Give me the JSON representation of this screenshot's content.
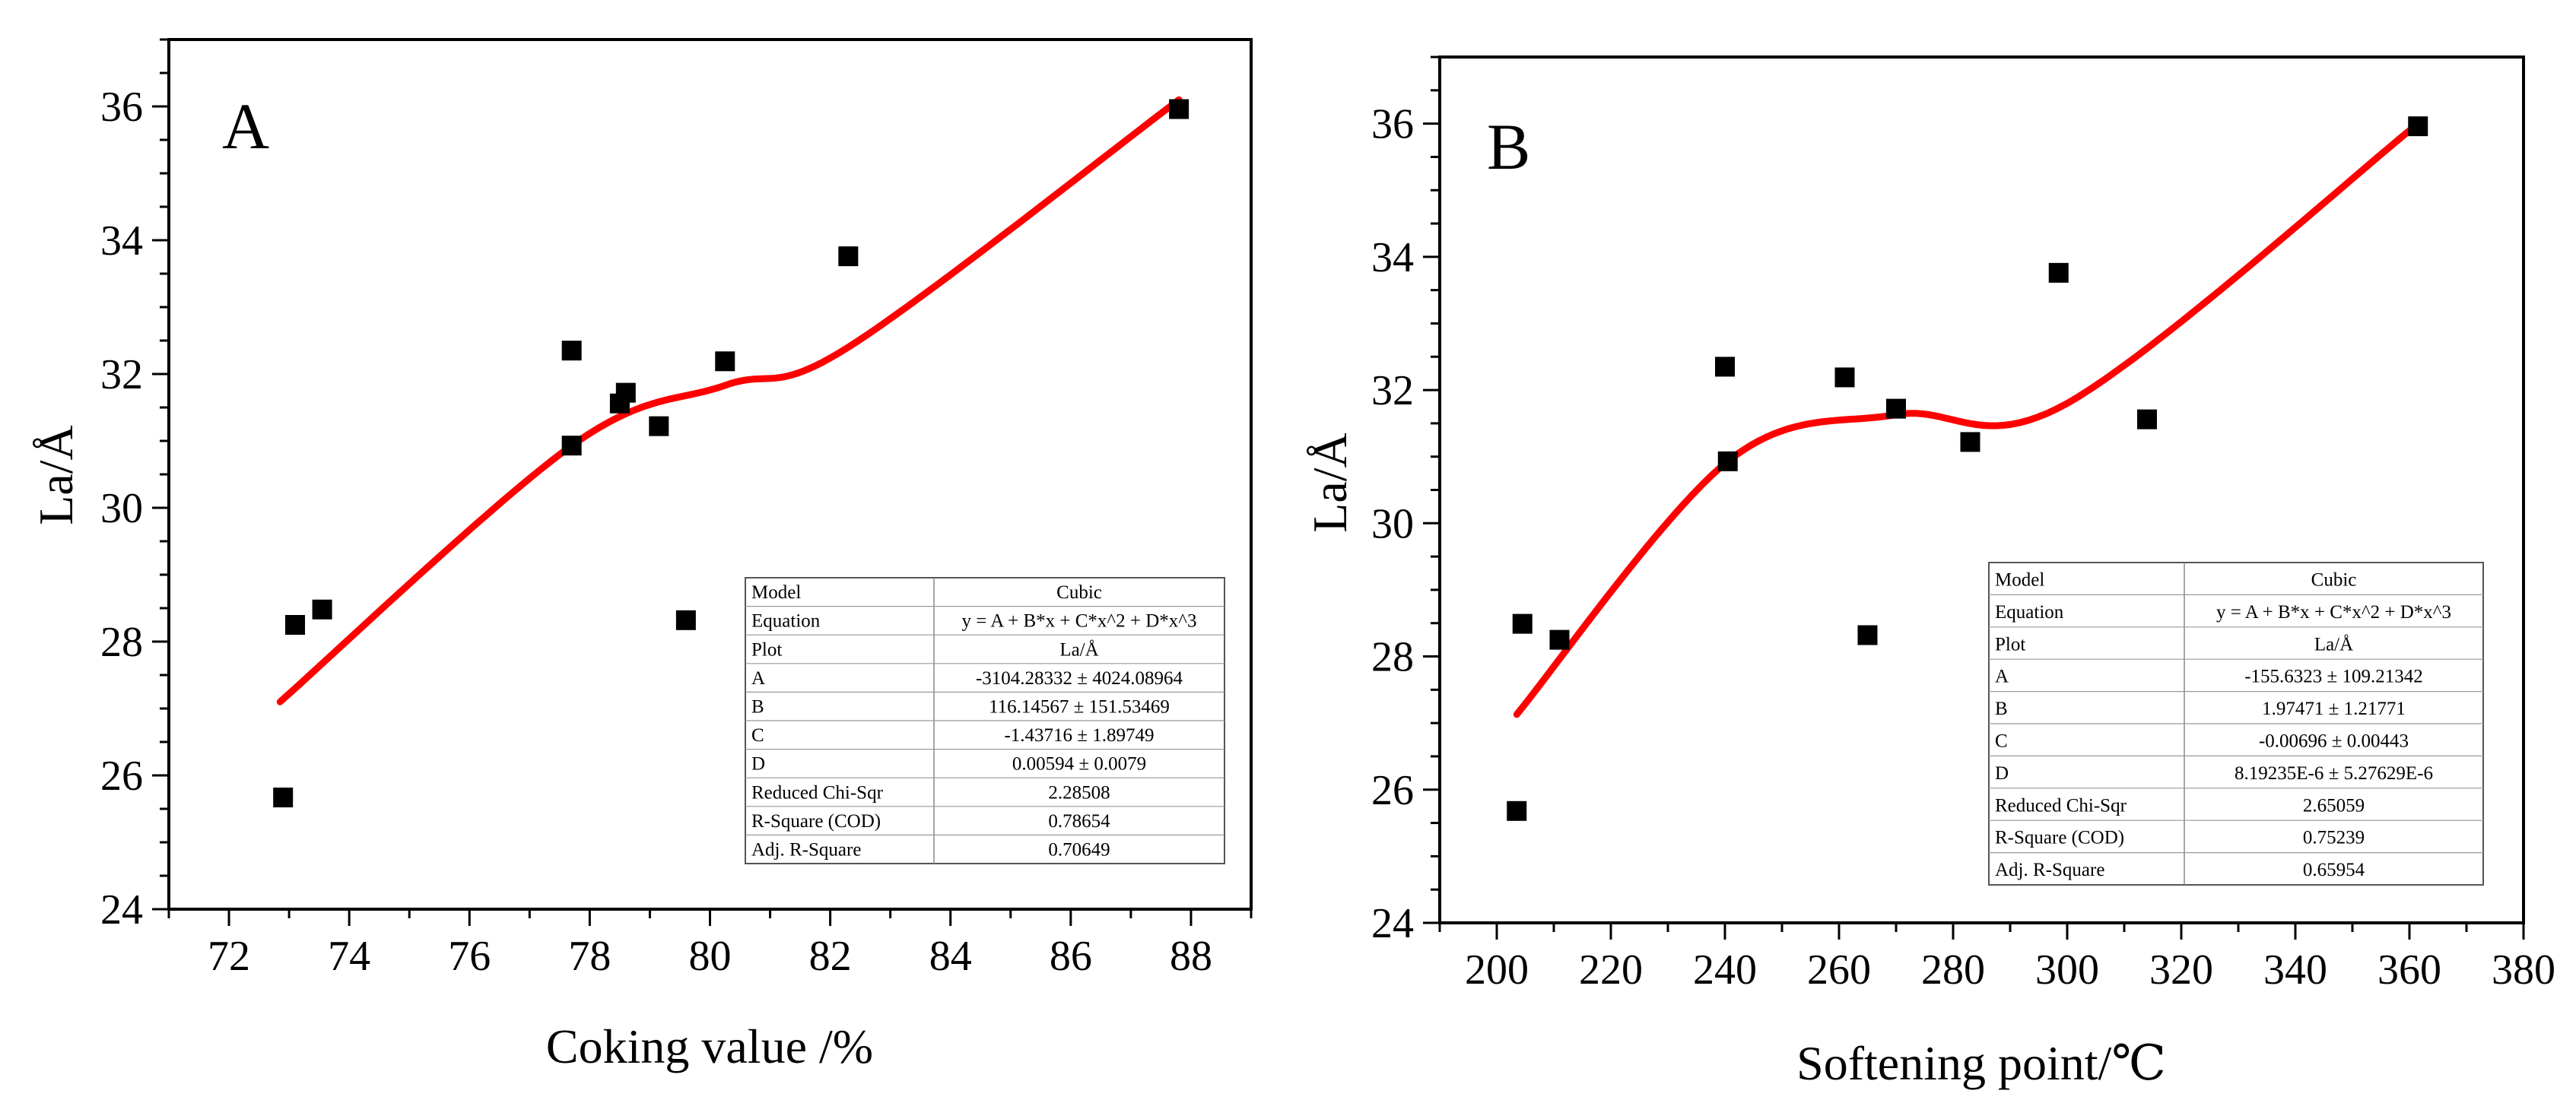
{
  "chart_data": [
    {
      "type": "scatter",
      "panel_label": "A",
      "xlabel": "Coking value /%",
      "ylabel": "La/Å",
      "xlim": [
        71,
        89
      ],
      "ylim": [
        24,
        37
      ],
      "x_ticks": [
        72,
        74,
        76,
        78,
        80,
        82,
        84,
        86,
        88
      ],
      "y_ticks": [
        24,
        26,
        28,
        30,
        32,
        34,
        36
      ],
      "series": [
        {
          "name": "La/Å",
          "points": [
            {
              "x": 72.9,
              "y": 25.67
            },
            {
              "x": 73.1,
              "y": 28.25
            },
            {
              "x": 73.55,
              "y": 28.48
            },
            {
              "x": 77.7,
              "y": 32.35
            },
            {
              "x": 77.7,
              "y": 30.93
            },
            {
              "x": 78.5,
              "y": 31.56
            },
            {
              "x": 78.6,
              "y": 31.72
            },
            {
              "x": 79.15,
              "y": 31.22
            },
            {
              "x": 79.6,
              "y": 28.32
            },
            {
              "x": 80.25,
              "y": 32.19
            },
            {
              "x": 82.3,
              "y": 33.76
            },
            {
              "x": 87.8,
              "y": 35.96
            }
          ]
        }
      ],
      "fit": {
        "color": "#ff0000",
        "x_range": [
          72.85,
          87.8
        ],
        "anchor_points": [
          [
            72.85,
            27.1
          ],
          [
            77.7,
            30.93
          ],
          [
            80.25,
            31.83
          ],
          [
            82.3,
            32.4
          ],
          [
            87.8,
            36.1
          ]
        ]
      },
      "fit_table": {
        "rows": [
          [
            "Model",
            "Cubic"
          ],
          [
            "Equation",
            "y = A + B*x + C*x^2 + D*x^3"
          ],
          [
            "Plot",
            "La/Å"
          ],
          [
            "A",
            "-3104.28332 ± 4024.08964"
          ],
          [
            "B",
            "116.14567 ± 151.53469"
          ],
          [
            "C",
            "-1.43716 ± 1.89749"
          ],
          [
            "D",
            "0.00594 ± 0.0079"
          ],
          [
            "Reduced Chi-Sqr",
            "2.28508"
          ],
          [
            "R-Square (COD)",
            "0.78654"
          ],
          [
            "Adj. R-Square",
            "0.70649"
          ]
        ]
      }
    },
    {
      "type": "scatter",
      "panel_label": "B",
      "xlabel": "Softening point/℃",
      "ylabel": "La/Å",
      "xlim": [
        190,
        380
      ],
      "ylim": [
        24,
        37
      ],
      "x_ticks": [
        200,
        220,
        240,
        260,
        280,
        300,
        320,
        340,
        360,
        380
      ],
      "y_ticks": [
        24,
        26,
        28,
        30,
        32,
        34,
        36
      ],
      "series": [
        {
          "name": "La/Å",
          "points": [
            {
              "x": 203.5,
              "y": 25.68
            },
            {
              "x": 204.5,
              "y": 28.49
            },
            {
              "x": 211,
              "y": 28.25
            },
            {
              "x": 240,
              "y": 32.35
            },
            {
              "x": 240.5,
              "y": 30.93
            },
            {
              "x": 261,
              "y": 32.19
            },
            {
              "x": 265,
              "y": 28.32
            },
            {
              "x": 270,
              "y": 31.72
            },
            {
              "x": 283,
              "y": 31.22
            },
            {
              "x": 298.5,
              "y": 33.76
            },
            {
              "x": 314,
              "y": 31.56
            },
            {
              "x": 361.5,
              "y": 35.96
            }
          ]
        }
      ],
      "fit": {
        "color": "#ff0000",
        "x_range": [
          203.5,
          361.5
        ],
        "anchor_points": [
          [
            203.5,
            27.13
          ],
          [
            240.5,
            30.93
          ],
          [
            270,
            31.63
          ],
          [
            300,
            31.8
          ],
          [
            361.5,
            36.0
          ]
        ]
      },
      "fit_table": {
        "rows": [
          [
            "Model",
            "Cubic"
          ],
          [
            "Equation",
            "y = A + B*x + C*x^2 + D*x^3"
          ],
          [
            "Plot",
            "La/Å"
          ],
          [
            "A",
            "-155.6323 ± 109.21342"
          ],
          [
            "B",
            "1.97471 ± 1.21771"
          ],
          [
            "C",
            "-0.00696 ± 0.00443"
          ],
          [
            "D",
            "8.19235E-6 ± 5.27629E-6"
          ],
          [
            "Reduced Chi-Sqr",
            "2.65059"
          ],
          [
            "R-Square (COD)",
            "0.75239"
          ],
          [
            "Adj. R-Square",
            "0.65954"
          ]
        ]
      }
    }
  ]
}
